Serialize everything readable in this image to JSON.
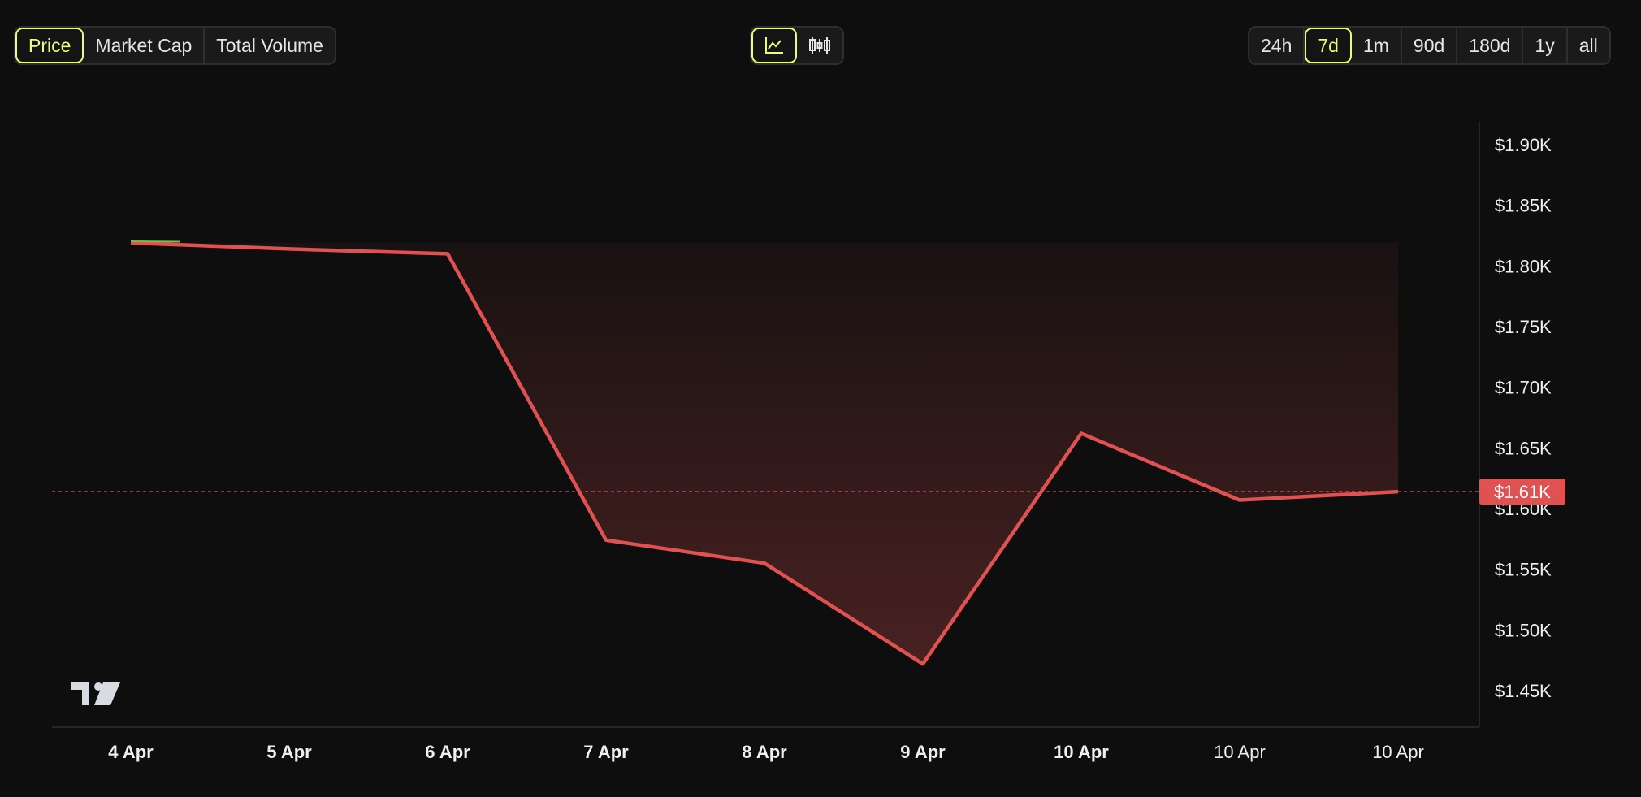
{
  "metric_tabs": [
    {
      "label": "Price",
      "active": true
    },
    {
      "label": "Market Cap",
      "active": false
    },
    {
      "label": "Total Volume",
      "active": false
    }
  ],
  "chart_type_toggle": [
    {
      "icon": "line-chart-icon",
      "active": true
    },
    {
      "icon": "candlestick-chart-icon",
      "active": false
    }
  ],
  "range_tabs": [
    {
      "label": "24h",
      "active": false
    },
    {
      "label": "7d",
      "active": true
    },
    {
      "label": "1m",
      "active": false
    },
    {
      "label": "90d",
      "active": false
    },
    {
      "label": "180d",
      "active": false
    },
    {
      "label": "1y",
      "active": false
    },
    {
      "label": "all",
      "active": false
    }
  ],
  "colors": {
    "accent": "#e5ff7a",
    "line": "#e05252",
    "background": "#0e0e0e",
    "start_segment": "#6fbf4a"
  },
  "chart_data": {
    "type": "area",
    "categories": [
      "4 Apr",
      "5 Apr",
      "6 Apr",
      "7 Apr",
      "8 Apr",
      "9 Apr",
      "10 Apr",
      "10 Apr",
      "10 Apr"
    ],
    "values": [
      1.819,
      1.814,
      1.81,
      1.574,
      1.555,
      1.472,
      1.662,
      1.607,
      1.614
    ],
    "y_unit": "thousand USD",
    "ylim": [
      1.45,
      1.9
    ],
    "y_ticks": [
      "$1.90K",
      "$1.85K",
      "$1.80K",
      "$1.75K",
      "$1.70K",
      "$1.65K",
      "$1.60K",
      "$1.55K",
      "$1.50K",
      "$1.45K"
    ],
    "y_tick_values": [
      1.9,
      1.85,
      1.8,
      1.75,
      1.7,
      1.65,
      1.6,
      1.55,
      1.5,
      1.45
    ],
    "baseline": 1.819,
    "current_price": 1.614,
    "current_price_label": "$1.61K",
    "grid": false,
    "legend": "none"
  },
  "logo_text": "TV"
}
